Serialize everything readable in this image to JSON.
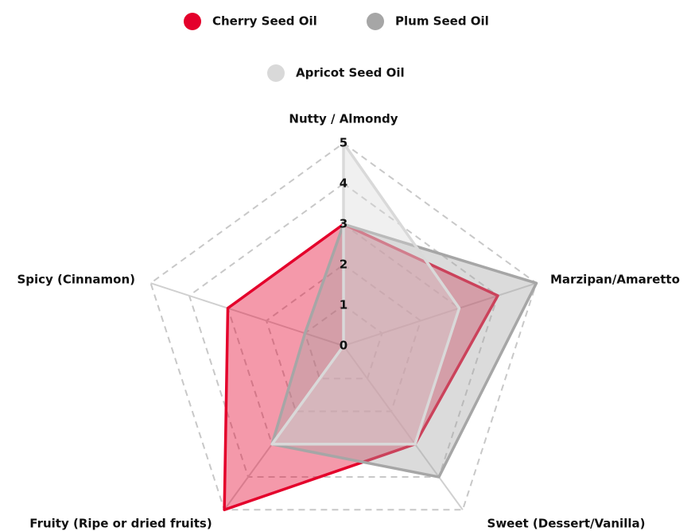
{
  "chart_data": {
    "type": "radar",
    "categories": [
      "Nutty / Almondy",
      "Marzipan/Amaretto",
      "Sweet (Dessert/Vanilla)",
      "Fruity (Ripe or dried fruits)",
      "Spicy (Cinnamon)"
    ],
    "series": [
      {
        "name": "Cherry Seed Oil",
        "color": "#e4002b",
        "values": [
          3,
          4,
          3,
          5,
          3
        ]
      },
      {
        "name": "Plum Seed Oil",
        "color": "#a6a6a6",
        "values": [
          3,
          5,
          4,
          3,
          1
        ]
      },
      {
        "name": "Apricot Seed Oil",
        "color": "#d9d9d9",
        "values": [
          5,
          3,
          3,
          3,
          0
        ]
      }
    ],
    "rlim": [
      0,
      5
    ],
    "rticks": [
      0,
      1,
      2,
      3,
      4,
      5
    ],
    "grid": true
  }
}
